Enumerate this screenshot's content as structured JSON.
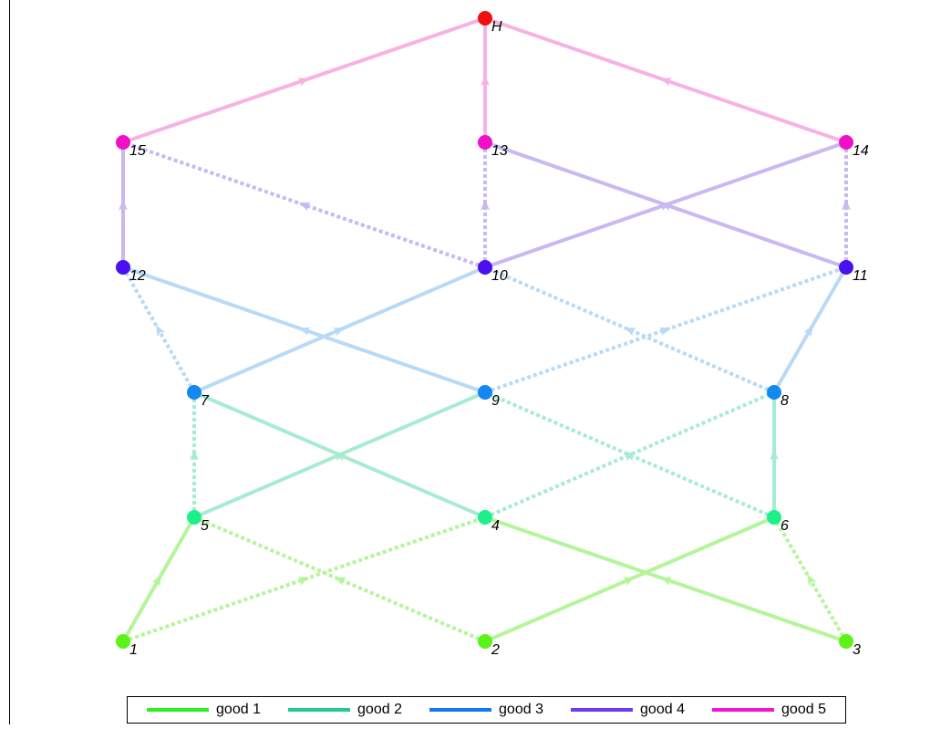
{
  "nodes": [
    {
      "id": "1",
      "label": "1",
      "color": "#5cf21a"
    },
    {
      "id": "2",
      "label": "2",
      "color": "#5cf21a"
    },
    {
      "id": "3",
      "label": "3",
      "color": "#5cf21a"
    },
    {
      "id": "4",
      "label": "4",
      "color": "#1cf08a"
    },
    {
      "id": "5",
      "label": "5",
      "color": "#1cf08a"
    },
    {
      "id": "6",
      "label": "6",
      "color": "#1cf08a"
    },
    {
      "id": "7",
      "label": "7",
      "color": "#1288f0"
    },
    {
      "id": "8",
      "label": "8",
      "color": "#1288f0"
    },
    {
      "id": "9",
      "label": "9",
      "color": "#1288f0"
    },
    {
      "id": "10",
      "label": "10",
      "color": "#4a10f0"
    },
    {
      "id": "11",
      "label": "11",
      "color": "#4a10f0"
    },
    {
      "id": "12",
      "label": "12",
      "color": "#4a10f0"
    },
    {
      "id": "13",
      "label": "13",
      "color": "#f010c8"
    },
    {
      "id": "14",
      "label": "14",
      "color": "#f010c8"
    },
    {
      "id": "15",
      "label": "15",
      "color": "#f010c8"
    },
    {
      "id": "H",
      "label": "H",
      "color": "#f01010"
    }
  ],
  "edges": [
    {
      "from": "1",
      "to": "5",
      "good": 1,
      "style": "solid"
    },
    {
      "from": "1",
      "to": "4",
      "good": 1,
      "style": "dotted"
    },
    {
      "from": "2",
      "to": "6",
      "good": 1,
      "style": "solid"
    },
    {
      "from": "2",
      "to": "5",
      "good": 1,
      "style": "dotted"
    },
    {
      "from": "3",
      "to": "4",
      "good": 1,
      "style": "solid"
    },
    {
      "from": "3",
      "to": "6",
      "good": 1,
      "style": "dotted"
    },
    {
      "from": "4",
      "to": "7",
      "good": 2,
      "style": "solid"
    },
    {
      "from": "4",
      "to": "8",
      "good": 2,
      "style": "dotted"
    },
    {
      "from": "5",
      "to": "9",
      "good": 2,
      "style": "solid"
    },
    {
      "from": "5",
      "to": "7",
      "good": 2,
      "style": "dotted"
    },
    {
      "from": "6",
      "to": "8",
      "good": 2,
      "style": "solid"
    },
    {
      "from": "6",
      "to": "9",
      "good": 2,
      "style": "dotted"
    },
    {
      "from": "7",
      "to": "10",
      "good": 3,
      "style": "solid"
    },
    {
      "from": "7",
      "to": "12",
      "good": 3,
      "style": "dotted"
    },
    {
      "from": "8",
      "to": "11",
      "good": 3,
      "style": "solid"
    },
    {
      "from": "8",
      "to": "10",
      "good": 3,
      "style": "dotted"
    },
    {
      "from": "9",
      "to": "12",
      "good": 3,
      "style": "solid"
    },
    {
      "from": "9",
      "to": "11",
      "good": 3,
      "style": "dotted"
    },
    {
      "from": "10",
      "to": "14",
      "good": 4,
      "style": "solid"
    },
    {
      "from": "10",
      "to": "13",
      "good": 4,
      "style": "dotted"
    },
    {
      "from": "10",
      "to": "15",
      "good": 4,
      "style": "dotted"
    },
    {
      "from": "11",
      "to": "13",
      "good": 4,
      "style": "solid"
    },
    {
      "from": "11",
      "to": "14",
      "good": 4,
      "style": "dotted"
    },
    {
      "from": "12",
      "to": "15",
      "good": 4,
      "style": "solid"
    },
    {
      "from": "13",
      "to": "H",
      "good": 5,
      "style": "solid"
    },
    {
      "from": "14",
      "to": "H",
      "good": 5,
      "style": "solid"
    },
    {
      "from": "15",
      "to": "H",
      "good": 5,
      "style": "solid"
    }
  ],
  "good_colors": {
    "1": "#b4f59a",
    "2": "#a6ecd0",
    "3": "#b8daf6",
    "4": "#c9b8f2",
    "5": "#f7b2e4"
  },
  "legend": [
    {
      "label": "good 1",
      "color": "#2bf020"
    },
    {
      "label": "good 2",
      "color": "#22c896"
    },
    {
      "label": "good 3",
      "color": "#1478f0"
    },
    {
      "label": "good 4",
      "color": "#6e3cf0"
    },
    {
      "label": "good 5",
      "color": "#f014d8"
    }
  ]
}
